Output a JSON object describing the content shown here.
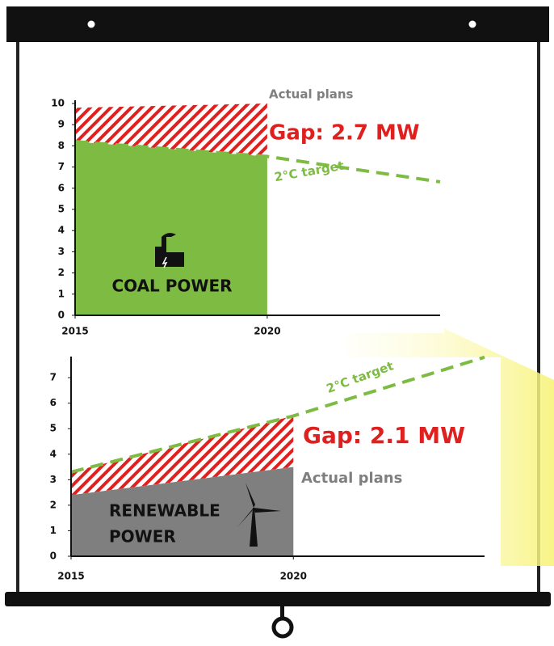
{
  "chart_data": [
    {
      "type": "gap-area",
      "label": [
        "COAL POWER"
      ],
      "gap_label": "Gap: 2.7 MW",
      "gap_color": "#e0201f",
      "x": [
        2015,
        2020,
        2024.5
      ],
      "xlim": [
        2015,
        2024.5
      ],
      "xticks": [
        2015,
        2020
      ],
      "ylim": [
        0,
        10
      ],
      "yticks": [
        0,
        1,
        2,
        3,
        4,
        5,
        6,
        7,
        8,
        9,
        10
      ],
      "series": [
        {
          "name": "Actual plans",
          "color": "#7f7f7f",
          "values": [
            9.8,
            10,
            null
          ]
        },
        {
          "name": "2°C target",
          "color": "#7dbb42",
          "values": [
            8.2,
            7.5,
            6.3
          ]
        }
      ]
    },
    {
      "type": "gap-area",
      "label": [
        "RENEWABLE",
        "POWER"
      ],
      "gap_label": "Gap: 2.1 MW",
      "gap_color": "#e0201f",
      "x": [
        2015,
        2020,
        2024.3
      ],
      "xlim": [
        2015,
        2024.3
      ],
      "xticks": [
        2015,
        2020
      ],
      "ylim": [
        0,
        7.7
      ],
      "yticks": [
        0,
        1,
        2,
        3,
        4,
        5,
        6,
        7
      ],
      "series": [
        {
          "name": "Actual plans",
          "color": "#7f7f7f",
          "values": [
            2.4,
            3.5,
            null
          ]
        },
        {
          "name": "2°C target",
          "color": "#7dbb42",
          "values": [
            3.3,
            5.5,
            7.8
          ]
        }
      ]
    }
  ]
}
